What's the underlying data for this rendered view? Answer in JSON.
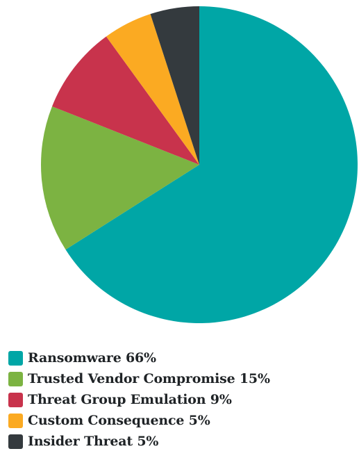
{
  "chart_data": {
    "type": "pie",
    "start": "12 o'clock",
    "direction": "clockwise",
    "legend_position": "bottom-left",
    "slices": [
      {
        "label": "Ransomware 66%",
        "value": 66,
        "color": "#00A6A6"
      },
      {
        "label": "Trusted Vendor Compromise 15%",
        "value": 15,
        "color": "#7CB342"
      },
      {
        "label": "Threat Group Emulation 9%",
        "value": 9,
        "color": "#C8334C"
      },
      {
        "label": "Custom Consequence 5%",
        "value": 5,
        "color": "#FBAA22"
      },
      {
        "label": "Insider Threat 5%",
        "value": 5,
        "color": "#343A3E"
      }
    ]
  }
}
